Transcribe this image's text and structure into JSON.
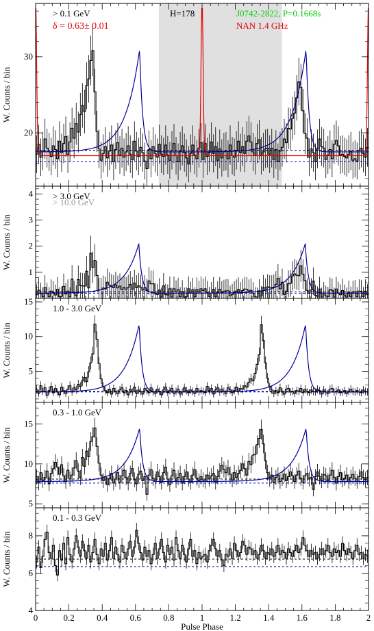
{
  "chart_data": [
    {
      "type": "line",
      "panel": "top",
      "ylabel": "W. Counts / bin",
      "ylim": [
        13,
        37
      ],
      "yticks": [
        20,
        30
      ],
      "annotations": {
        "energy": "> 0.1 GeV",
        "delta": "δ = 0.63± 0.01",
        "htest": "H=178",
        "pulsar": "J0742-2822, P=0.1668s",
        "radio": "NAN 1.4 GHz"
      },
      "shaded_region": [
        0.74,
        1.48
      ],
      "baselines": [
        17.7,
        16.2
      ],
      "gamma_peak": {
        "center": 0.625,
        "height": 31,
        "base": 17.5
      },
      "series": [
        {
          "values": [
            17.2,
            18.5,
            16.8,
            17.6,
            19.2,
            18.0,
            17.5,
            16.9,
            18.3,
            17.8,
            16.6,
            18.9,
            17.4,
            18.6,
            19.5,
            17.2,
            18.8,
            20.6,
            19.3,
            21.2,
            20.1,
            22.4,
            23.6,
            22.8,
            26.2,
            27.1,
            29.5,
            30.8,
            25.4,
            20.2,
            17.9,
            16.4,
            17.3,
            18.2,
            16.7,
            17.6,
            18.4,
            16.2,
            17.8,
            18.7,
            17.1,
            18.0,
            16.8,
            17.5,
            18.3,
            17.2,
            16.5,
            18.9,
            17.6,
            16.9,
            18.1,
            17.4,
            16.3,
            15.3,
            17.8,
            16.6,
            18.2,
            17.3,
            16.8,
            18.5,
            17.2,
            16.9,
            18.4,
            17.1,
            16.4,
            17.7,
            18.6,
            17.0,
            16.2,
            17.6,
            18.3,
            17.4,
            16.7,
            15.9,
            17.3,
            18.4,
            17.1,
            16.6,
            18.0,
            18.7
          ]
        },
        {
          "values": [
            16.5,
            18.6,
            16.9,
            17.4,
            18.8,
            17.3,
            18.2,
            16.4,
            17.9,
            16.7,
            17.5,
            17.6,
            16.6,
            18.4,
            17.0,
            16.8,
            17.7,
            18.9,
            17.4,
            18.2,
            17.3,
            18.9,
            19.6,
            18.8,
            17.5,
            17.0,
            18.6,
            19.1,
            17.0,
            17.5,
            17.9,
            18.0,
            17.2,
            18.0,
            16.5,
            17.8,
            16.2,
            17.6,
            18.1,
            19.2,
            18.7,
            20.6,
            20.5,
            21.9,
            22.6,
            24.6,
            26.7,
            26.0,
            22.9,
            19.9,
            19.3,
            16.8,
            17.9,
            17.4,
            16.2,
            17.9,
            19.2,
            18.2,
            18.0,
            16.5,
            17.1,
            17.8,
            16.6,
            18.5,
            19.0,
            18.3,
            17.1,
            17.2,
            16.9,
            16.7,
            17.2,
            17.6,
            16.4,
            16.6,
            16.3,
            17.7,
            18.0,
            17.3,
            16.8,
            18.1
          ]
        }
      ]
    },
    {
      "type": "line",
      "panel": "2",
      "ylabel": "W. Counts / bin",
      "ylim": [
        0,
        4.3
      ],
      "yticks": [
        1,
        2,
        3,
        4
      ],
      "annotations": {
        "energy": "> 3.0 GeV",
        "energy2": "> 10.0 GeV"
      },
      "baselines": [
        0.25,
        0.2
      ],
      "gamma_peak": {
        "center": 0.62,
        "height": 2.1,
        "base": 0.2
      },
      "series": [
        {
          "values": [
            0.14,
            0.32,
            0.18,
            0.06,
            0.41,
            0.18,
            0.06,
            0.28,
            0.23,
            0.13,
            0.35,
            0.06,
            0.08,
            0.46,
            0.17,
            0.28,
            0.06,
            0.74,
            0.24,
            0.11,
            0.72,
            0.49,
            0.48,
            0.47,
            1.04,
            0.4,
            1.73,
            1.19,
            1.45,
            0.88,
            0.33,
            0.33,
            0.4,
            0.36,
            0.62,
            0.51,
            0.45,
            0.41,
            0.52,
            0.4,
            0.47,
            0.34,
            0.41,
            0.35,
            0.42,
            0.54,
            0.35,
            0.59,
            0.41,
            0.48,
            0.43,
            0.32,
            0.41,
            0.3,
            0.67,
            0.56,
            0.56,
            0.18,
            0.15,
            0.32,
            0.05,
            0.48,
            0.15,
            0.13,
            0.37,
            0.05,
            0.37,
            0.25,
            0.33,
            0.06,
            0.26,
            0.05,
            0.06,
            0.37,
            0.21,
            0.33,
            0.06,
            0.34,
            0.24,
            0.37
          ]
        },
        {
          "values": [
            0.3,
            0.37,
            0.23,
            0.07,
            0.2,
            0.35,
            0.06,
            0.22,
            0.35,
            0.23,
            0.27,
            0.29,
            0.29,
            0.1,
            0.15,
            0.22,
            0.28,
            0.34,
            0.2,
            0.3,
            0.36,
            0.35,
            0.28,
            0.31,
            0.2,
            0.06,
            0.05,
            0.29,
            0.09,
            0.42,
            0.31,
            0.44,
            0.41,
            0.41,
            0.43,
            0.54,
            0.77,
            0.37,
            0.62,
            0.15,
            0.28,
            0.56,
            0.58,
            0.86,
            0.94,
            0.89,
            0.87,
            1.25,
            0.93,
            0.68,
            0.31,
            0.2,
            0.32,
            0.66,
            0.12,
            0.08,
            0.36,
            0.05,
            0.2,
            0.1,
            0.07,
            0.34,
            0.31,
            0.05,
            0.36,
            0.21,
            0.14,
            0.3,
            0.13,
            0.05,
            0.24,
            0.07,
            0.24,
            0.26,
            0.06,
            0.28,
            0.27,
            0.07,
            0.28,
            0.14
          ]
        }
      ]
    },
    {
      "type": "line",
      "panel": "3",
      "ylabel": "W. Counts / bin",
      "ylim": [
        0.5,
        15.5
      ],
      "yticks": [
        5,
        10,
        15
      ],
      "annotations": {
        "energy": "1.0 - 3.0 GeV"
      },
      "baselines": [
        2.1,
        2.0
      ],
      "gamma_peak": {
        "center": 0.622,
        "height": 11.8,
        "base": 2.0
      },
      "series": [
        {
          "values": [
            2.4,
            1.8,
            2.9,
            2.1,
            2.6,
            1.5,
            2.2,
            2.8,
            1.9,
            2.5,
            2.0,
            1.6,
            2.7,
            2.2,
            1.8,
            2.4,
            2.9,
            2.0,
            2.6,
            2.3,
            3.1,
            2.8,
            3.6,
            4.1,
            3.5,
            4.9,
            6.2,
            7.5,
            11.8,
            9.6,
            6.1,
            3.9,
            2.8,
            2.2,
            1.9,
            2.4,
            1.7,
            2.5,
            2.1,
            1.8,
            2.3,
            2.6,
            1.9,
            2.2,
            1.6,
            2.4,
            2.0,
            2.7,
            1.8,
            2.3,
            2.1,
            1.7,
            2.5,
            2.2,
            1.9,
            2.6,
            2.0,
            1.8,
            2.4,
            2.1,
            1.6,
            2.3,
            2.7,
            1.9,
            2.2,
            2.5,
            1.8,
            2.1,
            2.4,
            1.7,
            2.0,
            2.6,
            2.2,
            1.9,
            2.3,
            2.1,
            1.8,
            2.5,
            2.0,
            2.2
          ]
        },
        {
          "values": [
            2.1,
            1.9,
            2.8,
            2.2,
            2.5,
            1.7,
            2.3,
            2.6,
            2.0,
            2.4,
            2.1,
            1.8,
            2.6,
            2.3,
            1.9,
            2.2,
            2.7,
            2.1,
            2.5,
            2.4,
            2.9,
            2.7,
            3.4,
            3.9,
            3.6,
            4.7,
            6.0,
            7.4,
            11.7,
            9.4,
            6.2,
            4.0,
            2.7,
            2.3,
            1.8,
            2.2,
            1.9,
            2.6,
            2.0,
            1.7,
            2.4,
            2.5,
            2.0,
            2.1,
            1.8,
            2.2,
            2.1,
            2.5,
            1.9,
            2.4,
            2.0,
            1.9,
            2.3,
            2.1,
            2.0,
            2.4,
            2.2,
            1.7,
            2.3,
            2.0,
            1.8,
            2.4,
            2.5,
            2.0,
            2.1,
            2.3,
            1.9,
            2.0,
            2.2,
            1.8,
            2.1,
            2.4,
            2.1,
            2.0,
            2.2,
            2.0,
            1.9,
            2.3,
            2.1,
            2.0
          ]
        }
      ]
    },
    {
      "type": "line",
      "panel": "4",
      "ylabel": "W. Counts / bin",
      "ylim": [
        4.5,
        17.7
      ],
      "yticks": [
        5,
        10,
        15
      ],
      "annotations": {
        "energy": "0.3 - 1.0 GeV"
      },
      "baselines": [
        8.1,
        7.6
      ],
      "gamma_peak": {
        "center": 0.625,
        "height": 14.5,
        "base": 7.8
      },
      "series": [
        {
          "values": [
            8.4,
            7.6,
            8.9,
            7.9,
            8.3,
            9.1,
            7.5,
            8.8,
            9.4,
            10.2,
            9.6,
            8.7,
            9.9,
            8.5,
            7.8,
            9.2,
            8.1,
            8.6,
            9.5,
            10.4,
            9.1,
            8.3,
            10.8,
            9.7,
            11.6,
            10.9,
            12.8,
            13.4,
            14.5,
            12.2,
            10.1,
            8.6,
            7.9,
            8.4,
            7.4,
            8.2,
            8.8,
            7.6,
            8.1,
            8.9,
            7.7,
            8.5,
            9.2,
            8.3,
            7.6,
            8.8,
            9.4,
            8.0,
            7.5,
            8.7,
            9.1,
            7.9,
            8.4,
            6.2,
            8.6,
            9.3,
            8.2,
            7.8,
            9.0,
            8.4,
            7.7,
            8.9,
            9.6,
            8.1,
            7.4,
            8.5,
            9.2,
            7.9,
            8.3,
            8.8,
            7.6,
            8.4,
            9.0,
            8.1,
            7.7,
            8.6,
            9.3,
            8.2,
            7.9,
            8.4
          ]
        },
        {
          "values": [
            8.0,
            7.8,
            8.6,
            8.1,
            8.5,
            8.8,
            7.7,
            8.4,
            9.1,
            9.8,
            9.3,
            8.9,
            9.5,
            8.7,
            8.0,
            8.9,
            8.3,
            8.8,
            9.2,
            10.0,
            9.4,
            8.6,
            10.3,
            9.9,
            11.1,
            11.2,
            12.4,
            13.2,
            14.3,
            12.5,
            10.4,
            8.9,
            8.1,
            8.6,
            7.7,
            8.3,
            8.6,
            7.8,
            8.2,
            8.7,
            7.9,
            8.4,
            9.0,
            8.5,
            7.8,
            8.6,
            9.1,
            8.2,
            7.7,
            8.5,
            8.8,
            8.1,
            8.3,
            6.8,
            8.4,
            9.0,
            8.4,
            7.9,
            8.7,
            8.5,
            7.9,
            8.6,
            9.2,
            8.3,
            7.6,
            8.4,
            8.9,
            8.0,
            8.2,
            8.6,
            7.8,
            8.3,
            8.7,
            8.2,
            7.8,
            8.4,
            9.0,
            8.3,
            8.0,
            8.3
          ]
        }
      ]
    },
    {
      "type": "line",
      "panel": "5",
      "ylabel": "W. Counts / bin",
      "xlabel": "Pulse Phase",
      "ylim": [
        4,
        9.5
      ],
      "yticks": [
        4,
        6,
        8
      ],
      "xlim": [
        0,
        2
      ],
      "xticks": [
        "0",
        "0.2",
        "0.4",
        "0.6",
        "0.8",
        "1",
        "1.2",
        "1.4",
        "1.6",
        "1.8",
        "2"
      ],
      "annotations": {
        "energy": "0.1 - 0.3 GeV"
      },
      "baselines": [
        6.75,
        6.35
      ],
      "series": [
        {
          "values": [
            6.6,
            7.4,
            6.3,
            6.9,
            7.8,
            8.2,
            7.1,
            6.8,
            7.5,
            6.4,
            5.9,
            7.2,
            6.7,
            7.6,
            6.5,
            7.9,
            7.0,
            6.6,
            7.3,
            8.0,
            7.4,
            6.9,
            7.7,
            7.2,
            6.8,
            7.5,
            6.6,
            7.1,
            7.8,
            7.0,
            6.5,
            7.3,
            6.9,
            7.6,
            6.7,
            7.2,
            7.9,
            6.8,
            7.4,
            7.0,
            6.6,
            7.5,
            7.1,
            6.8,
            7.3,
            7.7,
            6.9,
            7.4,
            8.3,
            7.6,
            7.1,
            6.7,
            7.4,
            6.9,
            7.2,
            6.5,
            7.0,
            7.6,
            6.8,
            7.3,
            7.8,
            7.1,
            6.6,
            7.5,
            7.0,
            7.4,
            6.7,
            7.9,
            7.2,
            6.8,
            7.5,
            7.0,
            6.6,
            7.3,
            7.8,
            6.9,
            7.2,
            6.5,
            7.1,
            6.8
          ]
        },
        {
          "values": [
            6.9,
            7.0,
            6.6,
            7.2,
            7.5,
            7.8,
            7.3,
            6.9,
            7.2,
            6.7,
            6.4,
            7.0,
            6.9,
            7.3,
            6.8,
            7.6,
            7.2,
            6.9,
            7.1,
            7.7,
            7.5,
            7.0,
            7.4,
            7.3,
            7.0,
            7.2,
            6.8,
            7.0,
            7.5,
            7.2,
            6.8,
            7.1,
            7.0,
            7.3,
            6.9,
            7.1,
            7.5,
            7.0,
            7.2,
            7.1,
            6.8,
            7.3,
            7.1,
            6.9,
            7.2,
            7.5,
            7.1,
            7.3,
            7.9,
            7.5,
            7.2,
            6.9,
            7.2,
            7.0,
            7.1,
            6.8,
            7.0,
            7.3,
            7.0,
            7.2,
            7.5,
            7.1,
            6.9,
            7.3,
            7.1,
            7.2,
            6.9,
            7.6,
            7.2,
            7.0,
            7.3,
            7.1,
            6.8,
            7.2,
            7.5,
            7.0,
            7.1,
            6.8,
            7.0,
            6.9
          ]
        }
      ]
    }
  ],
  "colors": {
    "histogram": "#000000",
    "radio": "#e00000",
    "fit": "#00009b",
    "baseline_upper": "#000000",
    "baseline_lower": "#0000c8",
    "pulsar_label": "#00cc00",
    "energy2_label": "#999999",
    "shade": "#e0e0e0"
  }
}
